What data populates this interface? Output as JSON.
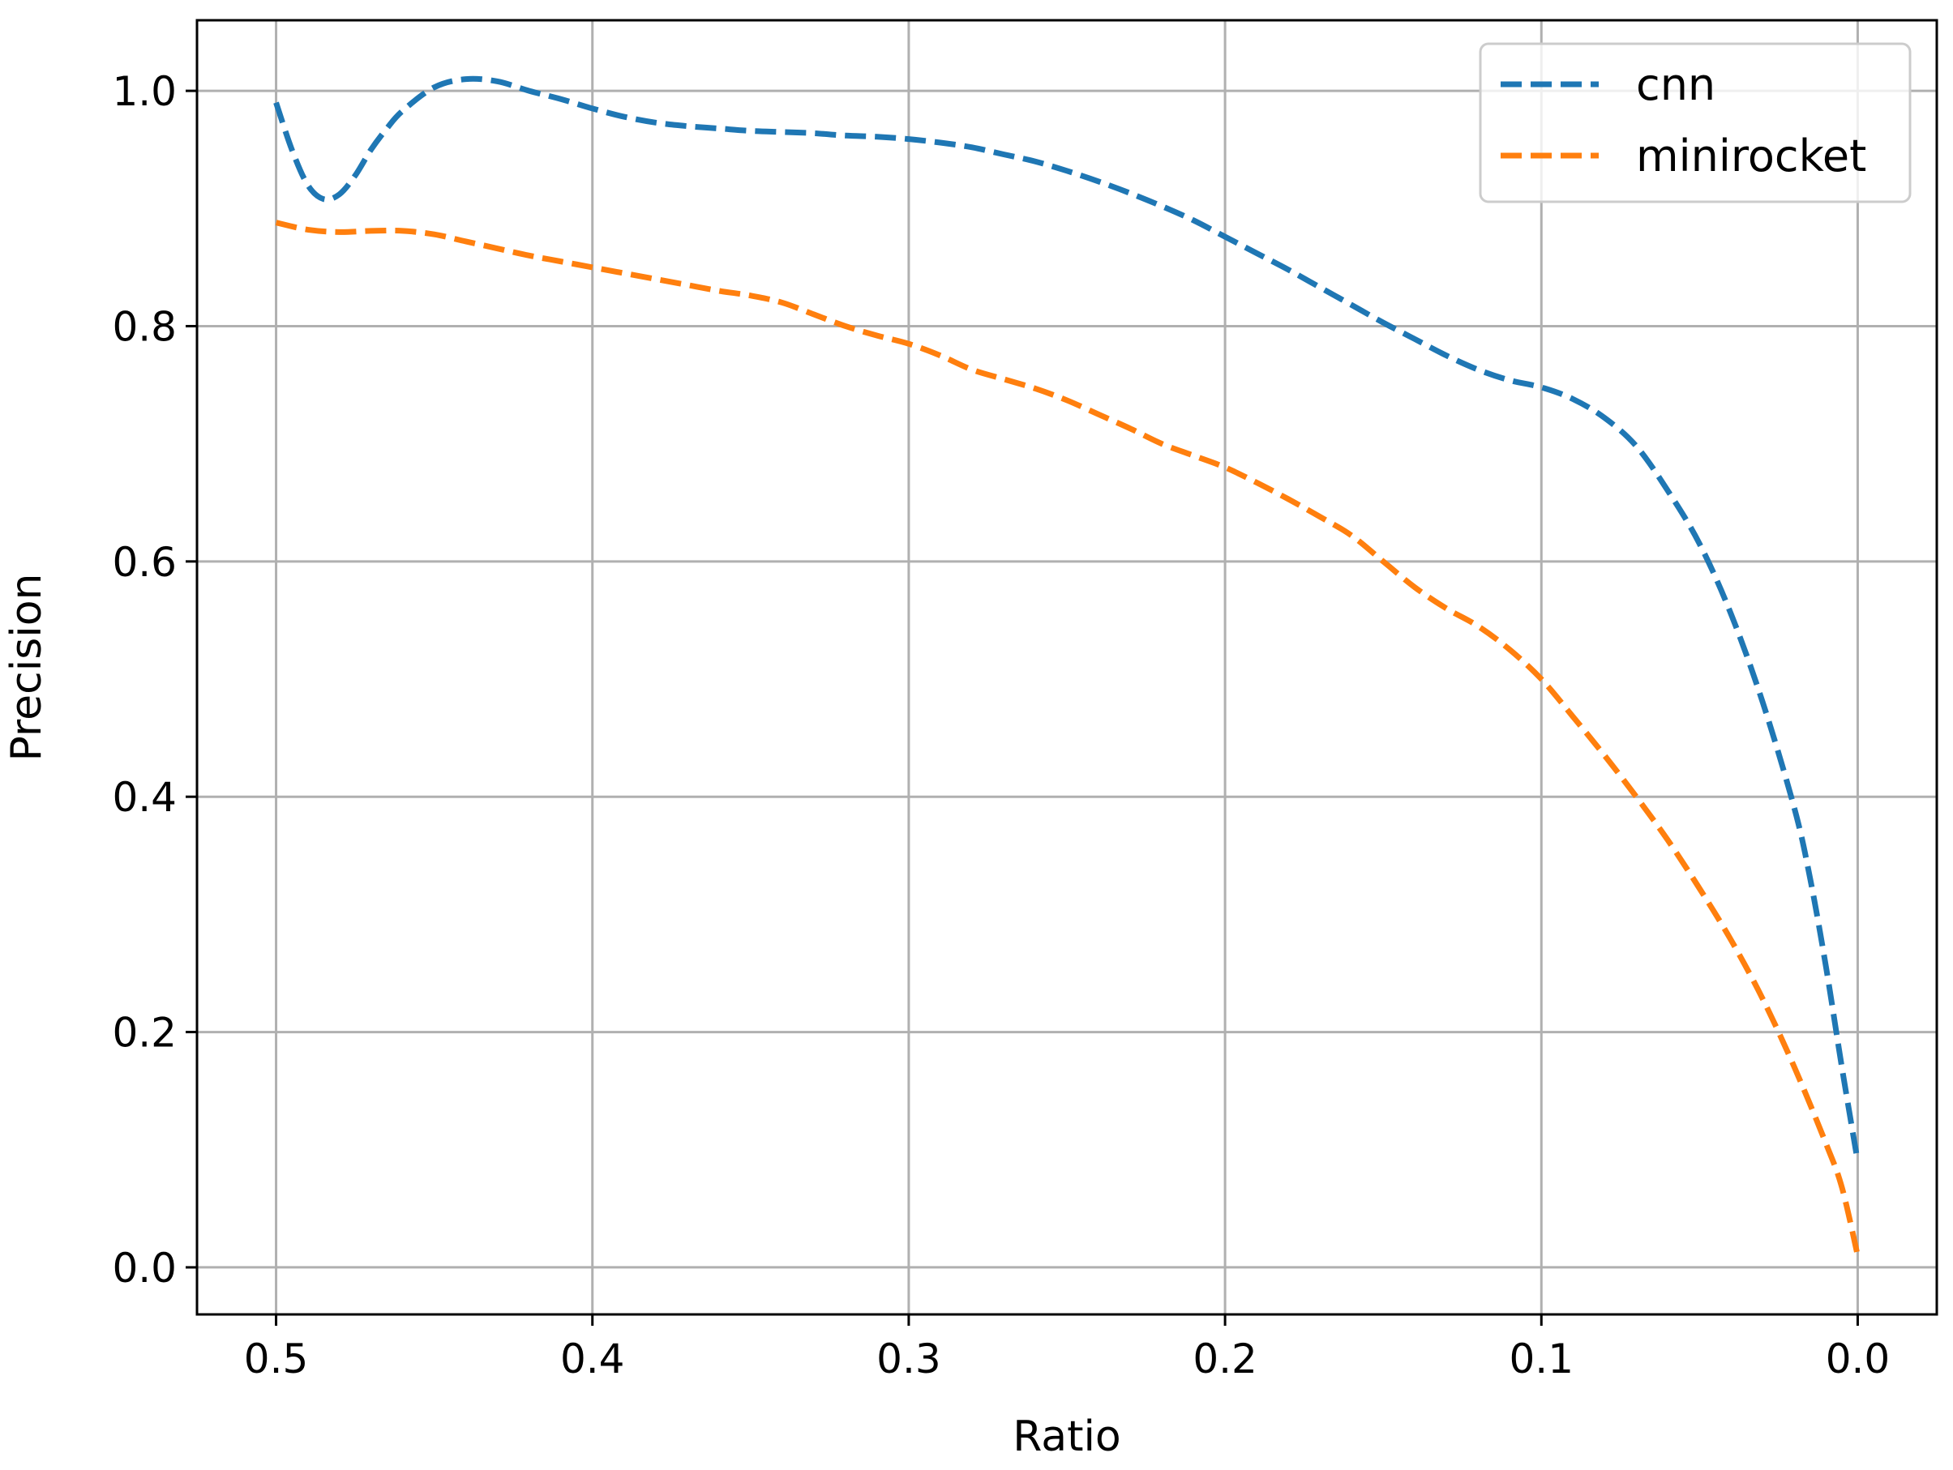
{
  "chart_data": {
    "type": "line",
    "title": "",
    "xlabel": "Ratio",
    "ylabel": "Precision",
    "xlim": [
      0.525,
      -0.025
    ],
    "ylim": [
      -0.04,
      1.06
    ],
    "x_inverted": true,
    "grid": true,
    "legend_position": "top-right",
    "x_ticks": [
      0.5,
      0.4,
      0.3,
      0.2,
      0.1,
      0.0
    ],
    "x_tick_labels": [
      "0.5",
      "0.4",
      "0.3",
      "0.2",
      "0.1",
      "0.0"
    ],
    "y_ticks": [
      0.0,
      0.2,
      0.4,
      0.6,
      0.8,
      1.0
    ],
    "y_tick_labels": [
      "0.0",
      "0.2",
      "0.4",
      "0.6",
      "0.8",
      "1.0"
    ],
    "series": [
      {
        "name": "cnn",
        "color": "#1f77b4",
        "line_style": "dashed",
        "x": [
          0.5,
          0.495,
          0.49,
          0.485,
          0.48,
          0.475,
          0.47,
          0.465,
          0.46,
          0.45,
          0.44,
          0.43,
          0.42,
          0.41,
          0.4,
          0.39,
          0.38,
          0.37,
          0.36,
          0.35,
          0.34,
          0.33,
          0.32,
          0.31,
          0.3,
          0.29,
          0.28,
          0.27,
          0.26,
          0.25,
          0.24,
          0.23,
          0.22,
          0.21,
          0.2,
          0.19,
          0.18,
          0.17,
          0.16,
          0.15,
          0.14,
          0.13,
          0.12,
          0.11,
          0.1,
          0.09,
          0.08,
          0.07,
          0.06,
          0.05,
          0.04,
          0.03,
          0.02,
          0.015,
          0.01,
          0.005,
          0.0
        ],
        "y": [
          0.99,
          0.95,
          0.92,
          0.908,
          0.912,
          0.928,
          0.95,
          0.968,
          0.983,
          1.003,
          1.01,
          1.008,
          1.0,
          0.993,
          0.985,
          0.978,
          0.973,
          0.97,
          0.968,
          0.966,
          0.965,
          0.964,
          0.962,
          0.961,
          0.959,
          0.956,
          0.952,
          0.946,
          0.94,
          0.932,
          0.923,
          0.913,
          0.902,
          0.89,
          0.876,
          0.862,
          0.848,
          0.833,
          0.818,
          0.803,
          0.789,
          0.775,
          0.763,
          0.754,
          0.748,
          0.738,
          0.722,
          0.698,
          0.66,
          0.615,
          0.555,
          0.48,
          0.39,
          0.33,
          0.255,
          0.17,
          0.09
        ]
      },
      {
        "name": "minirocket",
        "color": "#ff7f0e",
        "line_style": "dashed",
        "x": [
          0.5,
          0.49,
          0.48,
          0.47,
          0.46,
          0.45,
          0.44,
          0.43,
          0.42,
          0.41,
          0.4,
          0.39,
          0.38,
          0.37,
          0.36,
          0.35,
          0.34,
          0.33,
          0.32,
          0.31,
          0.3,
          0.29,
          0.28,
          0.27,
          0.26,
          0.25,
          0.24,
          0.23,
          0.22,
          0.21,
          0.2,
          0.19,
          0.18,
          0.17,
          0.16,
          0.15,
          0.14,
          0.13,
          0.12,
          0.11,
          0.1,
          0.09,
          0.08,
          0.07,
          0.06,
          0.05,
          0.04,
          0.03,
          0.02,
          0.01,
          0.005,
          0.0
        ],
        "y": [
          0.888,
          0.882,
          0.88,
          0.881,
          0.881,
          0.878,
          0.872,
          0.866,
          0.86,
          0.855,
          0.85,
          0.845,
          0.84,
          0.835,
          0.83,
          0.826,
          0.82,
          0.81,
          0.8,
          0.792,
          0.785,
          0.775,
          0.763,
          0.755,
          0.747,
          0.737,
          0.725,
          0.713,
          0.7,
          0.69,
          0.68,
          0.667,
          0.653,
          0.638,
          0.622,
          0.6,
          0.578,
          0.56,
          0.545,
          0.525,
          0.5,
          0.468,
          0.435,
          0.4,
          0.363,
          0.322,
          0.278,
          0.228,
          0.17,
          0.105,
          0.068,
          0.01
        ]
      }
    ]
  }
}
